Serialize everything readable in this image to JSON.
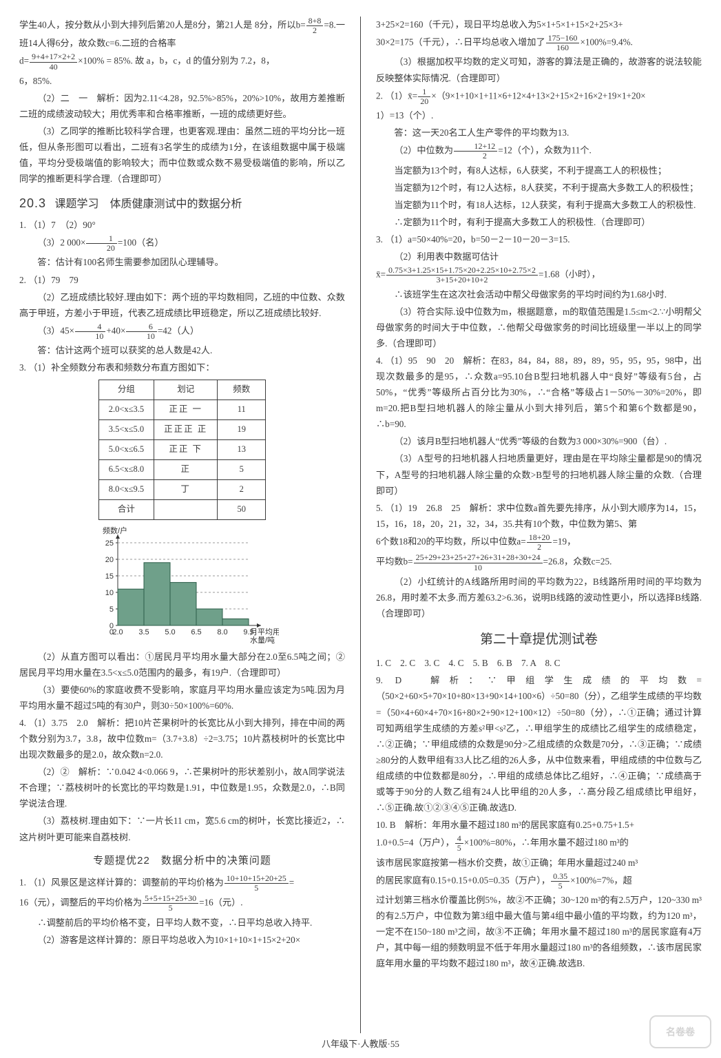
{
  "left": {
    "intro": [
      "学生40人，按分数从小到大排列后第20人是8分，第21人是",
      "8分，所以b=",
      "=8.一班14人得6分，故众数c=6.二班的合格率",
      "d=",
      "×100% = 85%. 故 a，b，c，d 的值分别为 7.2，8，",
      "6，85%.",
      "（2）二　一　解析：因为2.11<4.28，92.5%>85%，20%>10%，故用方差推断二班的成绩波动较大；用优秀率和合格率推断，一班的成绩更好些。",
      "（3）乙同学的推断比较科学合理，也更客观.理由：虽然二班的平均分比一班低，但从条形图可以看出，二班有3名学生的成绩为1分，在该组数据中属于极端值，平均分受极端值的影响较大；而中位数或众数不易受极端值的影响，所以乙同学的推断更科学合理.（合理即可）"
    ],
    "sec203_title": "课题学习　体质健康测试中的数据分析",
    "sec203_num": "20.3",
    "q1": [
      "1. （1）7　（2）90°",
      "（3）2 000×",
      "=100（名）",
      "答：估计有100名师生需要参加团队心理辅导。"
    ],
    "q2": [
      "2. （1）79　79",
      "（2）乙班成绩比较好.理由如下：两个班的平均数相同，乙班的中位数、众数高于甲班，方差小于甲班，代表乙班成绩比甲班稳定，所以乙班成绩比较好.",
      "（3）45×",
      "+40×",
      "=42（人）",
      "答：估计这两个班可以获奖的总人数是42人."
    ],
    "q3_head": "3. （1）补全频数分布表和频数分布直方图如下：",
    "table": {
      "headers": [
        "分组",
        "划记",
        "频数"
      ],
      "rows": [
        [
          "2.0<x≤3.5",
          "正正 一",
          "11"
        ],
        [
          "3.5<x≤5.0",
          "正正正 正",
          "19"
        ],
        [
          "5.0<x≤6.5",
          "正正 下",
          "13"
        ],
        [
          "6.5<x≤8.0",
          "正",
          "5"
        ],
        [
          "8.0<x≤9.5",
          "丁",
          "2"
        ],
        [
          "合计",
          "",
          "50"
        ]
      ]
    },
    "hist": {
      "y_ticks": [
        0,
        5,
        10,
        15,
        20,
        25
      ],
      "x_ticks": [
        "2.0",
        "3.5",
        "5.0",
        "6.5",
        "8.0",
        "9.5"
      ],
      "y_label": "频数/户",
      "x_label_1": "月平均用",
      "x_label_2": "水量/吨",
      "bars": [
        11,
        19,
        13,
        5,
        2
      ],
      "bar_color": "#6fa08a",
      "axis_color": "#333333"
    },
    "q3_after": [
      "（2）从直方图可以看出：①居民月平均用水量大部分在2.0至6.5吨之间；②居民月平均用水量在3.5<x≤5.0范围内的最多，有19户.（合理即可）",
      "（3）要使60%的家庭收费不受影响，家庭月平均用水量应该定为5吨.因为月平均用水量不超过5吨的有30户，则30÷50×100%=60%."
    ],
    "q4": [
      "4. （1）3.75　2.0　解析：把10片芒果树叶的长宽比从小到大排列，排在中间的两个数分别为3.7，3.8，故中位数m=（3.7+3.8）÷2=3.75；10片荔枝树叶的长宽比中出现次数最多的是2.0，故众数n=2.0.",
      "（2）②　解析：∵0.042 4<0.066 9，∴芒果树叶的形状差别小，故A同学说法不合理；∵荔枝树叶的长宽比的平均数是1.91，中位数是1.95，众数是2.0，∴B同学说法合理.",
      "（3）荔枝树.理由如下：∵一片长11 cm，宽5.6 cm的树叶，长宽比接近2，∴这片树叶更可能来自荔枝树."
    ],
    "topic22": "专题提优22　数据分析中的决策问题",
    "topic22_q1": [
      "1. （1）风景区是这样计算的：调整前的平均价格为",
      "=",
      "16（元），调整后的平均价格为",
      "=16（元）.",
      "∴调整前后的平均价格不变，日平均人数不变，∴日平均总收入持平.",
      "（2）游客是这样计算的：原日平均总收入为10×1+10×1+15×2+20×"
    ]
  },
  "right": {
    "cont": [
      "3+25×2=160（千元），现日平均总收入为5×1+5×1+15×2+25×3+",
      "30×2=175（千元），∴日平均总收入增加了",
      "×100%=9.4%.",
      "（3）根据加权平均数的定义可知，游客的算法是正确的，故游客的说法较能反映整体实际情况.（合理即可）"
    ],
    "q2": [
      "2. （1）x̄=",
      "×（9×1+10×1+11×6+12×4+13×2+15×2+16×2+19×1+20×",
      "1）=13（个）.",
      "答：这一天20名工人生产零件的平均数为13.",
      "（2）中位数为",
      "=12（个），众数为11个.",
      "当定额为13个时，有8人达标，6人获奖，不利于提高工人的积极性；",
      "当定额为12个时，有12人达标，8人获奖，不利于提高大多数工人的积极性；",
      "当定额为11个时，有18人达标，12人获奖，有利于提高大多数工人的积极性.",
      "∴定额为11个时，有利于提高大多数工人的积极性.（合理即可）"
    ],
    "q3": [
      "3. （1）a=50×40%=20，b=50－2－10－20－3=15.",
      "（2）利用表中数据可估计",
      "x̄=",
      "=1.68（小时），",
      "∴该班学生在这次社会活动中帮父母做家务的平均时间约为1.68小时.",
      "（3）符合实际.设中位数为m，根据题意，m的取值范围是1.5≤m<2.∵小明帮父母做家务的时间大于中位数，∴他帮父母做家务的时间比班级里一半以上的同学多.（合理即可）"
    ],
    "q4": [
      "4. （1）95　90　20　解析：在83，84，84，88，89，89，95，95，95，98中，出现次数最多的是95，∴众数a=95.10台B型扫地机器人中“良好”等级有5台，占50%，“优秀”等级所占百分比为30%，∴“合格”等级占1－50%－30%=20%，即m=20.把B型扫地机器人的除尘量从小到大排列后，第5个和第6个数都是90，∴b=90.",
      "（2）该月B型扫地机器人“优秀”等级的台数为3 000×30%=900（台）.",
      "（3）A型号的扫地机器人扫地质量更好，理由是在平均除尘量都是90的情况下，A型号的扫地机器人除尘量的众数>B型号的扫地机器人除尘量的众数.（合理即可）"
    ],
    "q5": [
      "5. （1）19　26.8　25　解析：求中位数a首先要先排序，从小到大顺序为14，15，15，16，18，20，21，32，34，35.共有10个数，中位数为第5、第",
      "6个数18和20的平均数，所以中位数a=",
      "=19，",
      "平均数b=",
      "=26.8，众数c=25.",
      "（2）小红统计的A线路所用时间的平均数为22，B线路所用时间的平均数为26.8，用时差不太多.而方差63.2>6.36，说明B线路的波动性更小，所以选择B线路.（合理即可）"
    ],
    "exam_title": "第二十章提优测试卷",
    "mc": "1. C　2. C　3. C　4. C　5. B　6. B　7. A　8. C",
    "q9": "9. D　解析：∵甲组学生成绩的平均数=（50×2+60×5+70×10+80×13+90×14+100×6）÷50=80（分），乙组学生成绩的平均数=（50×4+60×4+70×16+80×2+90×12+100×12）÷50=80（分），∴①正确；通过计算可知两组学生成绩的方差s²甲<s²乙，∴甲组学生的成绩比乙组学生的成绩稳定，∴②正确；∵甲组成绩的众数是90分>乙组成绩的众数是70分，∴③正确；∵成绩≥80分的人数甲组有33人比乙组的26人多，从中位数来看，甲组成绩的中位数与乙组成绩的中位数都是80分，∴甲组的成绩总体比乙组好，∴④正确；∵成绩高于或等于90分的人数乙组有24人比甲组的20人多，∴高分段乙组成绩比甲组好，∴⑤正确.故①②③④⑤正确.故选D.",
    "q10": [
      "10. B　解析：年用水量不超过180 m³的居民家庭有0.25+0.75+1.5+",
      "1.0+0.5=4（万户），",
      "×100%=80%，∴年用水量不超过180 m³的",
      "该市居民家庭按第一档水价交费，故①正确；年用水量超过240 m³",
      "的居民家庭有0.15+0.15+0.05=0.35（万户），",
      "×100%=7%，超",
      "过计划第三档水价覆盖比例5%，故②不正确；30~120 m³的有2.5万户，120~330 m³的有2.5万户，中位数为第3组中最大值与第4组中最小值的平均数，约为120 m³，一定不在150~180 m³之间，故③不正确；年用水量不超过180 m³的居民家庭有4万户，其中每一组的频数明显不低于年用水量超过180 m³的各组频数，∴该市居民家庭年用水量的平均数不超过180 m³，故④正确.故选B."
    ]
  },
  "footer": "八年级下·人教版·55",
  "watermark": "名卷卷"
}
